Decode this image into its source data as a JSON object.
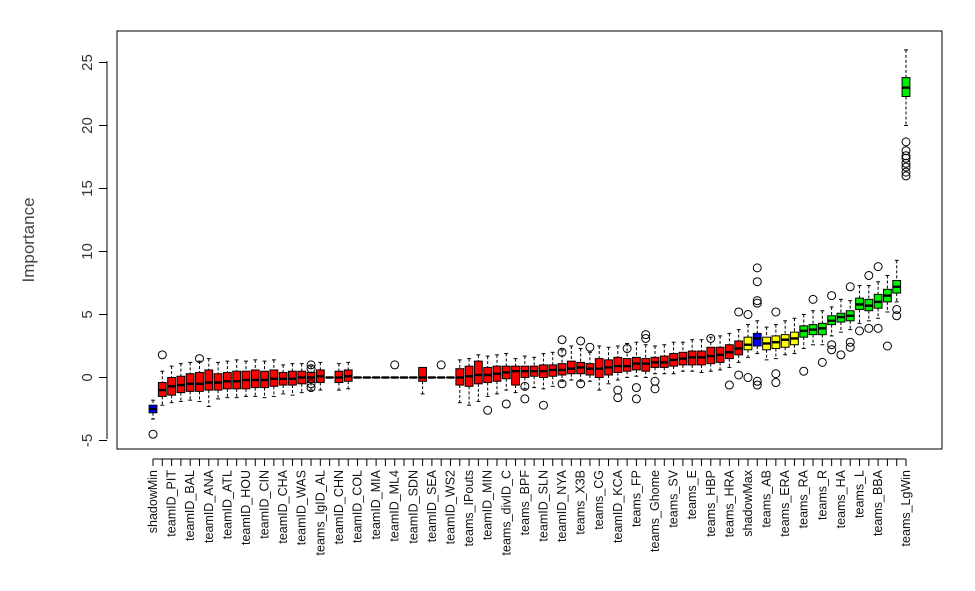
{
  "chart_data": {
    "type": "box",
    "ylabel": "Importance",
    "ylim": [
      -5,
      25
    ],
    "yticks": [
      -5,
      0,
      5,
      10,
      15,
      20,
      25
    ],
    "colors": {
      "rejected": "#ff0000",
      "shadow": "#0000ff",
      "tentative": "#ffff00",
      "confirmed": "#00ee00"
    },
    "categories": [
      {
        "label": "shadowMin",
        "median": -2.5,
        "q1": -2.8,
        "q3": -2.2,
        "min": -3.3,
        "max": -1.8,
        "status": "shadow",
        "outliers": [
          -4.5
        ]
      },
      {
        "label": "",
        "median": -1.0,
        "q1": -1.5,
        "q3": -0.4,
        "min": -2.2,
        "max": 0.5,
        "status": "rejected",
        "outliers": [
          1.8
        ]
      },
      {
        "label": "teamID_PIT",
        "median": -0.7,
        "q1": -1.4,
        "q3": 0.0,
        "min": -2.0,
        "max": 0.9,
        "status": "rejected",
        "outliers": []
      },
      {
        "label": "",
        "median": -0.6,
        "q1": -1.2,
        "q3": 0.1,
        "min": -1.9,
        "max": 1.1,
        "status": "rejected",
        "outliers": []
      },
      {
        "label": "teamID_BAL",
        "median": -0.5,
        "q1": -1.1,
        "q3": 0.3,
        "min": -1.8,
        "max": 1.2,
        "status": "rejected",
        "outliers": []
      },
      {
        "label": "",
        "median": -0.5,
        "q1": -1.1,
        "q3": 0.4,
        "min": -1.9,
        "max": 1.3,
        "status": "rejected",
        "outliers": [
          1.5
        ]
      },
      {
        "label": "teamID_ANA",
        "median": -0.4,
        "q1": -1.0,
        "q3": 0.6,
        "min": -2.3,
        "max": 1.5,
        "status": "rejected",
        "outliers": []
      },
      {
        "label": "",
        "median": -0.4,
        "q1": -1.0,
        "q3": 0.3,
        "min": -1.7,
        "max": 1.2,
        "status": "rejected",
        "outliers": []
      },
      {
        "label": "teamID_ATL",
        "median": -0.3,
        "q1": -0.9,
        "q3": 0.4,
        "min": -1.6,
        "max": 1.3,
        "status": "rejected",
        "outliers": []
      },
      {
        "label": "",
        "median": -0.3,
        "q1": -0.9,
        "q3": 0.5,
        "min": -1.6,
        "max": 1.4,
        "status": "rejected",
        "outliers": []
      },
      {
        "label": "teamID_HOU",
        "median": -0.2,
        "q1": -0.9,
        "q3": 0.5,
        "min": -1.5,
        "max": 1.3,
        "status": "rejected",
        "outliers": []
      },
      {
        "label": "",
        "median": -0.2,
        "q1": -0.8,
        "q3": 0.6,
        "min": -1.5,
        "max": 1.4,
        "status": "rejected",
        "outliers": []
      },
      {
        "label": "teamID_CIN",
        "median": -0.2,
        "q1": -0.8,
        "q3": 0.5,
        "min": -1.6,
        "max": 1.3,
        "status": "rejected",
        "outliers": []
      },
      {
        "label": "",
        "median": -0.1,
        "q1": -0.7,
        "q3": 0.6,
        "min": -1.5,
        "max": 1.4,
        "status": "rejected",
        "outliers": []
      },
      {
        "label": "teamID_CHA",
        "median": -0.1,
        "q1": -0.6,
        "q3": 0.4,
        "min": -1.3,
        "max": 1.0,
        "status": "rejected",
        "outliers": []
      },
      {
        "label": "",
        "median": -0.1,
        "q1": -0.6,
        "q3": 0.5,
        "min": -1.4,
        "max": 1.1,
        "status": "rejected",
        "outliers": []
      },
      {
        "label": "teamID_WAS",
        "median": 0.0,
        "q1": -0.5,
        "q3": 0.5,
        "min": -1.2,
        "max": 1.1,
        "status": "rejected",
        "outliers": []
      },
      {
        "label": "",
        "median": 0.0,
        "q1": -0.4,
        "q3": 0.4,
        "min": -1.0,
        "max": 0.9,
        "status": "rejected",
        "outliers": [
          1.0,
          0.7,
          -0.5,
          -0.8
        ]
      },
      {
        "label": "teams_lgID_AL",
        "median": 0.1,
        "q1": -0.4,
        "q3": 0.6,
        "min": -1.0,
        "max": 1.2,
        "status": "rejected",
        "outliers": []
      },
      {
        "label": "",
        "median": 0.0,
        "q1": 0.0,
        "q3": 0.0,
        "min": 0.0,
        "max": 0.0,
        "status": "rejected",
        "outliers": []
      },
      {
        "label": "teamID_CHN",
        "median": 0.0,
        "q1": -0.4,
        "q3": 0.5,
        "min": -1.0,
        "max": 1.1,
        "status": "rejected",
        "outliers": []
      },
      {
        "label": "",
        "median": 0.1,
        "q1": -0.3,
        "q3": 0.6,
        "min": -0.9,
        "max": 1.2,
        "status": "rejected",
        "outliers": []
      },
      {
        "label": "teamID_COL",
        "median": 0.0,
        "q1": 0.0,
        "q3": 0.0,
        "min": 0.0,
        "max": 0.0,
        "status": "rejected",
        "outliers": []
      },
      {
        "label": "",
        "median": 0.0,
        "q1": 0.0,
        "q3": 0.0,
        "min": 0.0,
        "max": 0.0,
        "status": "rejected",
        "outliers": []
      },
      {
        "label": "teamID_MIA",
        "median": 0.0,
        "q1": 0.0,
        "q3": 0.0,
        "min": 0.0,
        "max": 0.0,
        "status": "rejected",
        "outliers": []
      },
      {
        "label": "",
        "median": 0.0,
        "q1": 0.0,
        "q3": 0.0,
        "min": 0.0,
        "max": 0.0,
        "status": "rejected",
        "outliers": []
      },
      {
        "label": "teamID_ML4",
        "median": 0.0,
        "q1": 0.0,
        "q3": 0.0,
        "min": 0.0,
        "max": 0.0,
        "status": "rejected",
        "outliers": [
          1.0
        ]
      },
      {
        "label": "",
        "median": 0.0,
        "q1": 0.0,
        "q3": 0.0,
        "min": 0.0,
        "max": 0.0,
        "status": "rejected",
        "outliers": []
      },
      {
        "label": "teamID_SDN",
        "median": 0.0,
        "q1": 0.0,
        "q3": 0.0,
        "min": 0.0,
        "max": 0.0,
        "status": "rejected",
        "outliers": []
      },
      {
        "label": "",
        "median": 0.0,
        "q1": -0.3,
        "q3": 0.8,
        "min": -1.3,
        "max": 0.8,
        "status": "rejected",
        "outliers": []
      },
      {
        "label": "teamID_SEA",
        "median": 0.0,
        "q1": 0.0,
        "q3": 0.0,
        "min": 0.0,
        "max": 0.0,
        "status": "rejected",
        "outliers": []
      },
      {
        "label": "",
        "median": 0.0,
        "q1": 0.0,
        "q3": 0.0,
        "min": 0.0,
        "max": 0.0,
        "status": "rejected",
        "outliers": [
          1.0
        ]
      },
      {
        "label": "teamID_WS2",
        "median": 0.0,
        "q1": 0.0,
        "q3": 0.0,
        "min": 0.0,
        "max": 0.0,
        "status": "rejected",
        "outliers": []
      },
      {
        "label": "",
        "median": 0.0,
        "q1": -0.6,
        "q3": 0.7,
        "min": -2.0,
        "max": 1.4,
        "status": "rejected",
        "outliers": []
      },
      {
        "label": "teams_IPouts",
        "median": 0.1,
        "q1": -0.7,
        "q3": 0.9,
        "min": -2.2,
        "max": 1.5,
        "status": "rejected",
        "outliers": []
      },
      {
        "label": "",
        "median": 0.2,
        "q1": -0.5,
        "q3": 1.3,
        "min": -1.9,
        "max": 1.8,
        "status": "rejected",
        "outliers": []
      },
      {
        "label": "teamID_MIN",
        "median": 0.2,
        "q1": -0.4,
        "q3": 0.8,
        "min": -1.5,
        "max": 1.7,
        "status": "rejected",
        "outliers": [
          -2.6
        ]
      },
      {
        "label": "",
        "median": 0.3,
        "q1": -0.3,
        "q3": 0.9,
        "min": -1.3,
        "max": 1.8,
        "status": "rejected",
        "outliers": []
      },
      {
        "label": "teams_divID_C",
        "median": 0.4,
        "q1": -0.1,
        "q3": 0.9,
        "min": -1.0,
        "max": 1.9,
        "status": "rejected",
        "outliers": [
          -2.1
        ]
      },
      {
        "label": "",
        "median": 0.5,
        "q1": -0.6,
        "q3": 0.9,
        "min": -1.2,
        "max": 1.5,
        "status": "rejected",
        "outliers": []
      },
      {
        "label": "teams_BPF",
        "median": 0.5,
        "q1": 0.0,
        "q3": 0.9,
        "min": -0.9,
        "max": 1.7,
        "status": "rejected",
        "outliers": [
          -0.7,
          -1.7
        ]
      },
      {
        "label": "",
        "median": 0.5,
        "q1": 0.1,
        "q3": 0.9,
        "min": -0.8,
        "max": 1.6,
        "status": "rejected",
        "outliers": []
      },
      {
        "label": "teamID_SLN",
        "median": 0.5,
        "q1": 0.0,
        "q3": 1.0,
        "min": -0.9,
        "max": 1.9,
        "status": "rejected",
        "outliers": [
          -2.2
        ]
      },
      {
        "label": "",
        "median": 0.6,
        "q1": 0.1,
        "q3": 1.0,
        "min": -0.7,
        "max": 2.0,
        "status": "rejected",
        "outliers": []
      },
      {
        "label": "teamID_NYA",
        "median": 0.6,
        "q1": 0.2,
        "q3": 1.1,
        "min": -0.3,
        "max": 2.2,
        "status": "rejected",
        "outliers": [
          3.0,
          2.0,
          -0.5
        ]
      },
      {
        "label": "",
        "median": 0.7,
        "q1": 0.3,
        "q3": 1.3,
        "min": -0.2,
        "max": 2.5,
        "status": "rejected",
        "outliers": []
      },
      {
        "label": "teams_X3B",
        "median": 0.8,
        "q1": 0.3,
        "q3": 1.2,
        "min": -0.3,
        "max": 2.3,
        "status": "rejected",
        "outliers": [
          2.9,
          -0.5
        ]
      },
      {
        "label": "",
        "median": 0.7,
        "q1": 0.2,
        "q3": 1.1,
        "min": -0.3,
        "max": 2.0,
        "status": "rejected",
        "outliers": [
          2.4
        ]
      },
      {
        "label": "teams_CG",
        "median": 0.7,
        "q1": 0.0,
        "q3": 1.5,
        "min": -1.0,
        "max": 2.5,
        "status": "rejected",
        "outliers": []
      },
      {
        "label": "",
        "median": 0.8,
        "q1": 0.2,
        "q3": 1.4,
        "min": -0.5,
        "max": 2.4,
        "status": "rejected",
        "outliers": []
      },
      {
        "label": "teamID_KCA",
        "median": 0.9,
        "q1": 0.4,
        "q3": 1.6,
        "min": -0.2,
        "max": 2.5,
        "status": "rejected",
        "outliers": [
          -1.0,
          -1.6
        ]
      },
      {
        "label": "",
        "median": 0.9,
        "q1": 0.5,
        "q3": 1.5,
        "min": 0.0,
        "max": 2.7,
        "status": "rejected",
        "outliers": [
          2.3
        ]
      },
      {
        "label": "teams_FP",
        "median": 1.1,
        "q1": 0.6,
        "q3": 1.6,
        "min": 0.1,
        "max": 2.8,
        "status": "rejected",
        "outliers": [
          -0.8,
          -1.7
        ]
      },
      {
        "label": "",
        "median": 1.1,
        "q1": 0.5,
        "q3": 1.5,
        "min": 0.0,
        "max": 2.6,
        "status": "rejected",
        "outliers": [
          3.4,
          3.1
        ]
      },
      {
        "label": "teams_Ghome",
        "median": 1.2,
        "q1": 0.8,
        "q3": 1.6,
        "min": 0.3,
        "max": 2.5,
        "status": "rejected",
        "outliers": [
          -0.3,
          -0.9
        ]
      },
      {
        "label": "",
        "median": 1.2,
        "q1": 0.8,
        "q3": 1.7,
        "min": 0.3,
        "max": 2.6,
        "status": "rejected",
        "outliers": []
      },
      {
        "label": "teams_SV",
        "median": 1.4,
        "q1": 0.9,
        "q3": 1.9,
        "min": 0.3,
        "max": 2.8,
        "status": "rejected",
        "outliers": []
      },
      {
        "label": "",
        "median": 1.5,
        "q1": 1.0,
        "q3": 2.0,
        "min": 0.5,
        "max": 2.8,
        "status": "rejected",
        "outliers": []
      },
      {
        "label": "teams_E",
        "median": 1.6,
        "q1": 1.0,
        "q3": 2.1,
        "min": 0.5,
        "max": 3.0,
        "status": "rejected",
        "outliers": []
      },
      {
        "label": "",
        "median": 1.6,
        "q1": 1.0,
        "q3": 2.1,
        "min": 0.4,
        "max": 3.0,
        "status": "rejected",
        "outliers": []
      },
      {
        "label": "teams_HBP",
        "median": 1.7,
        "q1": 1.1,
        "q3": 2.4,
        "min": 0.5,
        "max": 3.2,
        "status": "rejected",
        "outliers": [
          3.1
        ]
      },
      {
        "label": "",
        "median": 1.8,
        "q1": 1.2,
        "q3": 2.4,
        "min": 0.6,
        "max": 3.3,
        "status": "rejected",
        "outliers": []
      },
      {
        "label": "teams_HRA",
        "median": 2.0,
        "q1": 1.5,
        "q3": 2.6,
        "min": 0.8,
        "max": 3.5,
        "status": "rejected",
        "outliers": [
          -0.6
        ]
      },
      {
        "label": "",
        "median": 2.3,
        "q1": 1.8,
        "q3": 2.9,
        "min": 1.2,
        "max": 3.8,
        "status": "rejected",
        "outliers": [
          5.2,
          0.2
        ]
      },
      {
        "label": "shadowMax",
        "median": 2.6,
        "q1": 2.2,
        "q3": 3.2,
        "min": 1.6,
        "max": 4.2,
        "status": "tentative",
        "outliers": [
          5.0,
          0.0
        ]
      },
      {
        "label": "",
        "median": 3.1,
        "q1": 2.5,
        "q3": 3.5,
        "min": 1.9,
        "max": 4.5,
        "status": "shadow",
        "outliers": [
          8.7,
          7.6,
          6.1,
          5.9,
          -0.3,
          -0.6
        ]
      },
      {
        "label": "teams_AB",
        "median": 2.7,
        "q1": 2.2,
        "q3": 3.2,
        "min": 1.4,
        "max": 4.0,
        "status": "tentative",
        "outliers": []
      },
      {
        "label": "",
        "median": 2.8,
        "q1": 2.3,
        "q3": 3.3,
        "min": 1.5,
        "max": 4.2,
        "status": "tentative",
        "outliers": [
          5.2,
          0.3,
          -0.4
        ]
      },
      {
        "label": "teams_ERA",
        "median": 3.0,
        "q1": 2.4,
        "q3": 3.4,
        "min": 1.8,
        "max": 4.5,
        "status": "tentative",
        "outliers": []
      },
      {
        "label": "",
        "median": 3.1,
        "q1": 2.6,
        "q3": 3.6,
        "min": 1.9,
        "max": 4.7,
        "status": "tentative",
        "outliers": []
      },
      {
        "label": "teams_RA",
        "median": 3.7,
        "q1": 3.2,
        "q3": 4.1,
        "min": 2.3,
        "max": 5.0,
        "status": "confirmed",
        "outliers": [
          0.5
        ]
      },
      {
        "label": "",
        "median": 3.8,
        "q1": 3.4,
        "q3": 4.2,
        "min": 2.6,
        "max": 5.3,
        "status": "confirmed",
        "outliers": [
          6.2
        ]
      },
      {
        "label": "teams_R",
        "median": 3.9,
        "q1": 3.4,
        "q3": 4.3,
        "min": 2.6,
        "max": 5.3,
        "status": "confirmed",
        "outliers": [
          1.2
        ]
      },
      {
        "label": "",
        "median": 4.5,
        "q1": 4.2,
        "q3": 4.9,
        "min": 3.3,
        "max": 5.6,
        "status": "confirmed",
        "outliers": [
          6.5,
          2.6,
          2.2
        ]
      },
      {
        "label": "teams_HA",
        "median": 4.8,
        "q1": 4.4,
        "q3": 5.1,
        "min": 3.6,
        "max": 6.2,
        "status": "confirmed",
        "outliers": [
          1.8
        ]
      },
      {
        "label": "",
        "median": 4.9,
        "q1": 4.5,
        "q3": 5.3,
        "min": 3.8,
        "max": 6.1,
        "status": "confirmed",
        "outliers": [
          7.2,
          2.8,
          2.4
        ]
      },
      {
        "label": "teams_L",
        "median": 5.8,
        "q1": 5.4,
        "q3": 6.3,
        "min": 4.3,
        "max": 7.3,
        "status": "confirmed",
        "outliers": [
          3.7
        ]
      },
      {
        "label": "",
        "median": 5.7,
        "q1": 5.3,
        "q3": 6.2,
        "min": 4.5,
        "max": 7.3,
        "status": "confirmed",
        "outliers": [
          8.1,
          3.9
        ]
      },
      {
        "label": "teams_BBA",
        "median": 6.0,
        "q1": 5.5,
        "q3": 6.6,
        "min": 4.7,
        "max": 7.6,
        "status": "confirmed",
        "outliers": [
          8.8,
          3.9
        ]
      },
      {
        "label": "",
        "median": 6.5,
        "q1": 6.0,
        "q3": 7.0,
        "min": 5.2,
        "max": 8.1,
        "status": "confirmed",
        "outliers": [
          2.5
        ]
      },
      {
        "label": "",
        "median": 7.2,
        "q1": 6.7,
        "q3": 7.7,
        "min": 6.0,
        "max": 9.3,
        "status": "confirmed",
        "outliers": [
          5.4,
          4.9
        ]
      },
      {
        "label": "teams_LgWin",
        "median": 23.0,
        "q1": 22.3,
        "q3": 23.8,
        "min": 20.0,
        "max": 26.0,
        "status": "confirmed",
        "outliers": [
          18.7,
          18.0,
          17.6,
          17.4,
          17.0,
          16.7,
          16.3,
          16.0
        ]
      }
    ]
  }
}
